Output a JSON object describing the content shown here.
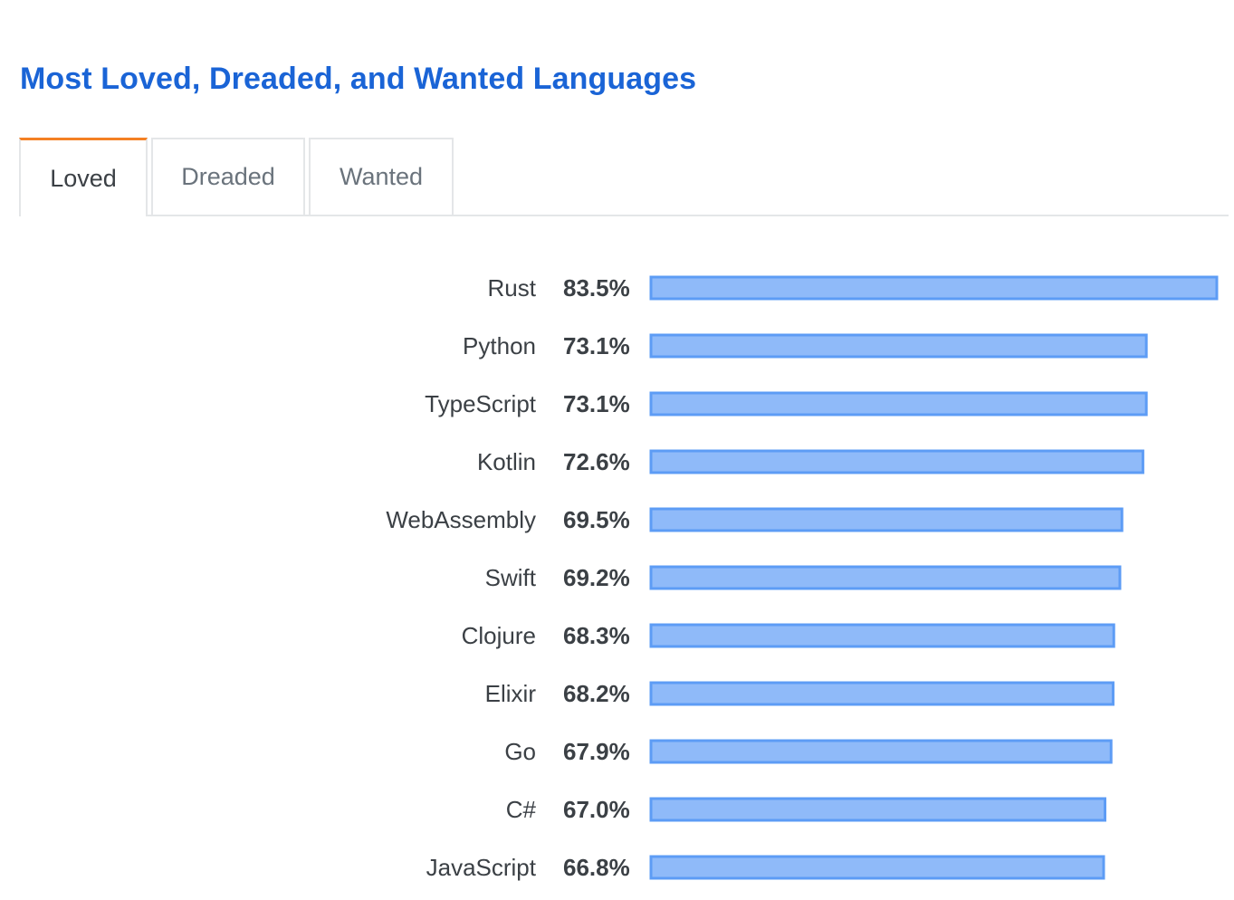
{
  "title": "Most Loved, Dreaded, and Wanted Languages",
  "tabs": [
    {
      "label": "Loved",
      "active": true
    },
    {
      "label": "Dreaded",
      "active": false
    },
    {
      "label": "Wanted",
      "active": false
    }
  ],
  "colors": {
    "title": "#1a64d6",
    "tab_active_accent": "#f48024",
    "bar_fill": "#8fbaf9",
    "bar_stroke": "#5d9cf5"
  },
  "chart_data": {
    "type": "bar",
    "orientation": "horizontal",
    "categories": [
      "Rust",
      "Python",
      "TypeScript",
      "Kotlin",
      "WebAssembly",
      "Swift",
      "Clojure",
      "Elixir",
      "Go",
      "C#",
      "JavaScript"
    ],
    "values": [
      83.5,
      73.1,
      73.1,
      72.6,
      69.5,
      69.2,
      68.3,
      68.2,
      67.9,
      67.0,
      66.8
    ],
    "value_labels": [
      "83.5%",
      "73.1%",
      "73.1%",
      "72.6%",
      "69.5%",
      "69.2%",
      "68.3%",
      "68.2%",
      "67.9%",
      "67.0%",
      "66.8%"
    ],
    "title": "",
    "xlabel": "",
    "ylabel": "",
    "xlim": [
      0,
      83.5
    ]
  }
}
